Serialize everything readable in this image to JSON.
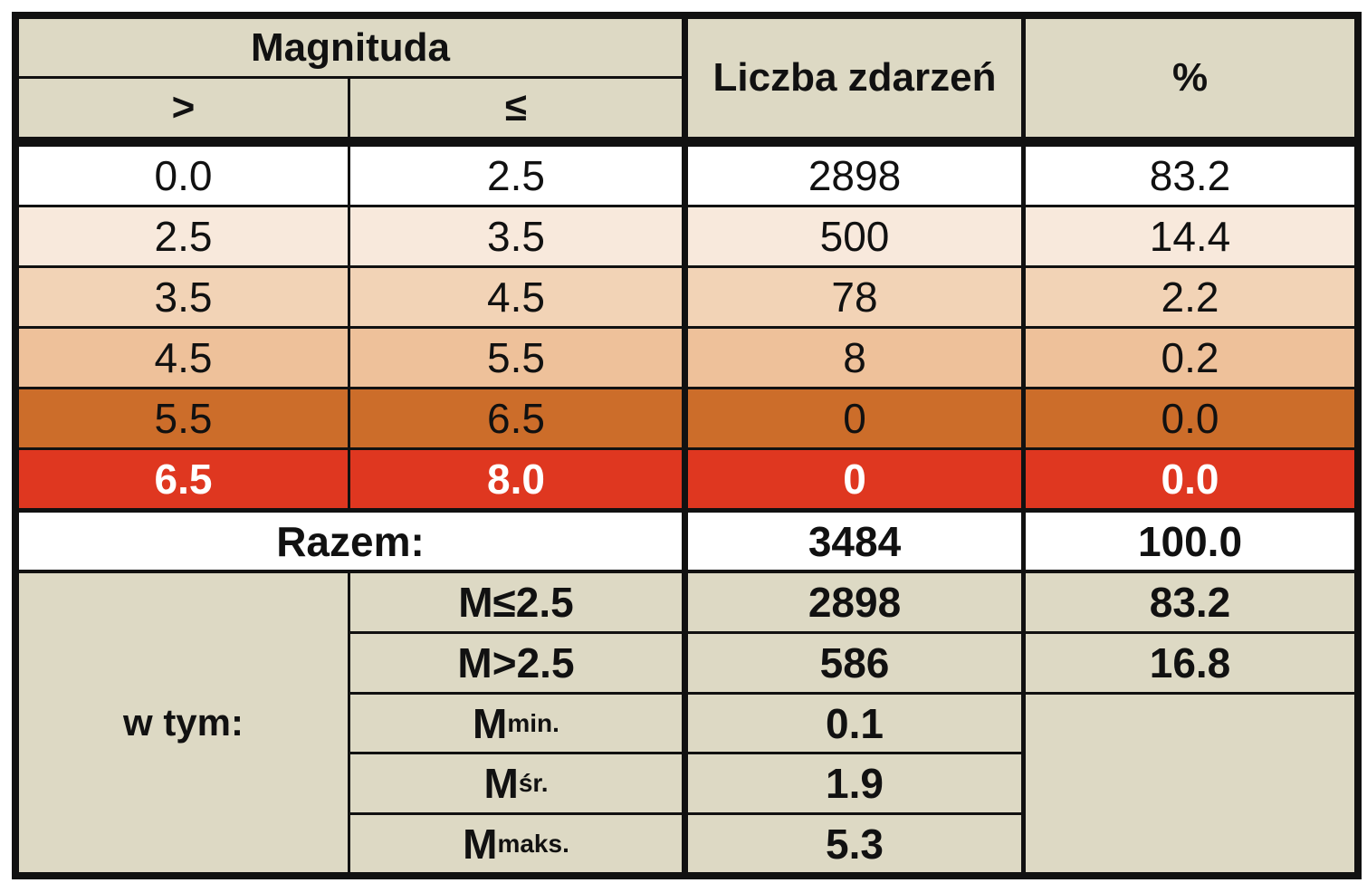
{
  "header": {
    "magnitude_label": "Magnituda",
    "gt_label": ">",
    "le_label": "≤",
    "count_label": "Liczba zdarzeń",
    "percent_label": "%"
  },
  "rows": [
    {
      "from": "0.0",
      "to": "2.5",
      "count": "2898",
      "percent": "83.2",
      "color": "#ffffff",
      "text_color": "#111111"
    },
    {
      "from": "2.5",
      "to": "3.5",
      "count": "500",
      "percent": "14.4",
      "color": "#f8e9dc",
      "text_color": "#111111"
    },
    {
      "from": "3.5",
      "to": "4.5",
      "count": "78",
      "percent": "2.2",
      "color": "#f2d3b6",
      "text_color": "#111111"
    },
    {
      "from": "4.5",
      "to": "5.5",
      "count": "8",
      "percent": "0.2",
      "color": "#eec19a",
      "text_color": "#111111"
    },
    {
      "from": "5.5",
      "to": "6.5",
      "count": "0",
      "percent": "0.0",
      "color": "#cc6d2a",
      "text_color": "#111111"
    },
    {
      "from": "6.5",
      "to": "8.0",
      "count": "0",
      "percent": "0.0",
      "color": "#df3720",
      "text_color": "#ffffff"
    }
  ],
  "total": {
    "label": "Razem:",
    "count": "3484",
    "percent": "100.0"
  },
  "subtotal": {
    "label": "w tym:",
    "le_row": {
      "label": "M≤2.5",
      "count": "2898",
      "percent": "83.2"
    },
    "gt_row": {
      "label": "M>2.5",
      "count": "586",
      "percent": "16.8"
    },
    "min_row": {
      "base": "M",
      "sub": "min.",
      "value": "0.1"
    },
    "avg_row": {
      "base": "M",
      "sub": "śr.",
      "value": "1.9"
    },
    "max_row": {
      "base": "M",
      "sub": "maks.",
      "value": "5.3"
    }
  }
}
